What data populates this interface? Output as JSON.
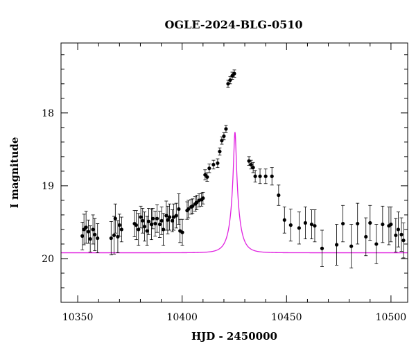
{
  "chart_data": {
    "type": "scatter",
    "title": "OGLE-2024-BLG-0510",
    "xlabel": "HJD - 2450000",
    "ylabel": "I magnitude",
    "xlim": [
      10342,
      10508
    ],
    "ylim": [
      20.6,
      17.04
    ],
    "y_inverted": true,
    "x_major_ticks": [
      10350,
      10400,
      10450,
      10500
    ],
    "x_tick_labels": [
      "10350",
      "10400",
      "10450",
      "10500"
    ],
    "y_major_ticks": [
      18,
      19,
      20
    ],
    "y_tick_labels": [
      "18",
      "19",
      "20"
    ],
    "grid": false,
    "legend": "none",
    "colors": {
      "points": "#000000",
      "model": "#e020e0",
      "axes": "#000000"
    },
    "model": {
      "type": "point-lens microlensing fit",
      "t0": 10425.3,
      "tE": 4.45,
      "u0": 0.127,
      "baseline_mag": 19.92,
      "blend_fraction": 0.48
    },
    "series": [
      {
        "type": "errorbar",
        "x": [
          10352.2,
          10353.0,
          10354.0,
          10355.1,
          10356.0,
          10357.3,
          10358.2,
          10359.5,
          10366.0,
          10367.4,
          10368.0,
          10369.2,
          10370.0,
          10371.0,
          10377.2,
          10378.0,
          10379.1,
          10380.2,
          10381.1,
          10382.0,
          10383.2,
          10384.0,
          10385.3,
          10386.0,
          10387.1,
          10388.0,
          10389.3,
          10390.2,
          10391.0,
          10392.4,
          10393.1,
          10394.0,
          10395.3,
          10396.0,
          10397.2,
          10398.4,
          10399.0,
          10400.1,
          10402.4,
          10403.0,
          10404.3,
          10405.0,
          10406.2,
          10407.0,
          10408.1,
          10409.3,
          10410.0,
          10411.0,
          10412.0,
          10413.0,
          10415.0,
          10417.0,
          10418.0,
          10419.0,
          10420.0,
          10421.0,
          10422.0,
          10423.0,
          10424.0,
          10425.0,
          10432.0,
          10433.0,
          10434.0,
          10435.0,
          10437.3,
          10440.0,
          10443.0,
          10446.2,
          10449.0,
          10452.0,
          10456.0,
          10459.0,
          10462.0,
          10463.5,
          10467.0,
          10474.0,
          10477.0,
          10481.0,
          10484.0,
          10488.0,
          10490.0,
          10493.0,
          10496.0,
          10499.0,
          10500.0,
          10502.3,
          10503.5,
          10505.0,
          10506.0
        ],
        "y": [
          19.69,
          19.6,
          19.57,
          19.63,
          19.73,
          19.6,
          19.67,
          19.72,
          19.72,
          19.68,
          19.45,
          19.7,
          19.54,
          19.6,
          19.52,
          19.54,
          19.6,
          19.43,
          19.48,
          19.56,
          19.62,
          19.49,
          19.53,
          19.45,
          19.52,
          19.45,
          19.53,
          19.48,
          19.6,
          19.41,
          19.47,
          19.43,
          19.48,
          19.43,
          19.41,
          19.32,
          19.62,
          19.64,
          19.34,
          19.32,
          19.29,
          19.28,
          19.25,
          19.23,
          19.2,
          19.19,
          19.17,
          18.85,
          18.88,
          18.76,
          18.71,
          18.69,
          18.53,
          18.38,
          18.32,
          18.22,
          17.6,
          17.55,
          17.49,
          17.46,
          18.66,
          18.71,
          18.75,
          18.87,
          18.87,
          18.87,
          18.87,
          19.13,
          19.47,
          19.54,
          19.58,
          19.51,
          19.53,
          19.55,
          19.86,
          19.81,
          19.52,
          19.83,
          19.52,
          19.7,
          19.51,
          19.8,
          19.53,
          19.55,
          19.53,
          19.68,
          19.6,
          19.67,
          19.75
        ],
        "err": [
          0.19,
          0.21,
          0.22,
          0.16,
          0.18,
          0.2,
          0.22,
          0.2,
          0.23,
          0.26,
          0.2,
          0.22,
          0.15,
          0.17,
          0.18,
          0.2,
          0.22,
          0.15,
          0.17,
          0.2,
          0.2,
          0.18,
          0.21,
          0.14,
          0.17,
          0.19,
          0.18,
          0.19,
          0.22,
          0.2,
          0.19,
          0.18,
          0.15,
          0.18,
          0.17,
          0.21,
          0.16,
          0.18,
          0.12,
          0.12,
          0.1,
          0.1,
          0.1,
          0.1,
          0.09,
          0.09,
          0.08,
          0.07,
          0.06,
          0.06,
          0.06,
          0.06,
          0.05,
          0.05,
          0.05,
          0.05,
          0.05,
          0.05,
          0.05,
          0.05,
          0.06,
          0.06,
          0.07,
          0.08,
          0.1,
          0.1,
          0.12,
          0.14,
          0.18,
          0.22,
          0.22,
          0.22,
          0.2,
          0.22,
          0.25,
          0.28,
          0.25,
          0.3,
          0.28,
          0.26,
          0.24,
          0.27,
          0.25,
          0.26,
          0.24,
          0.23,
          0.24,
          0.23,
          0.24
        ]
      }
    ]
  }
}
